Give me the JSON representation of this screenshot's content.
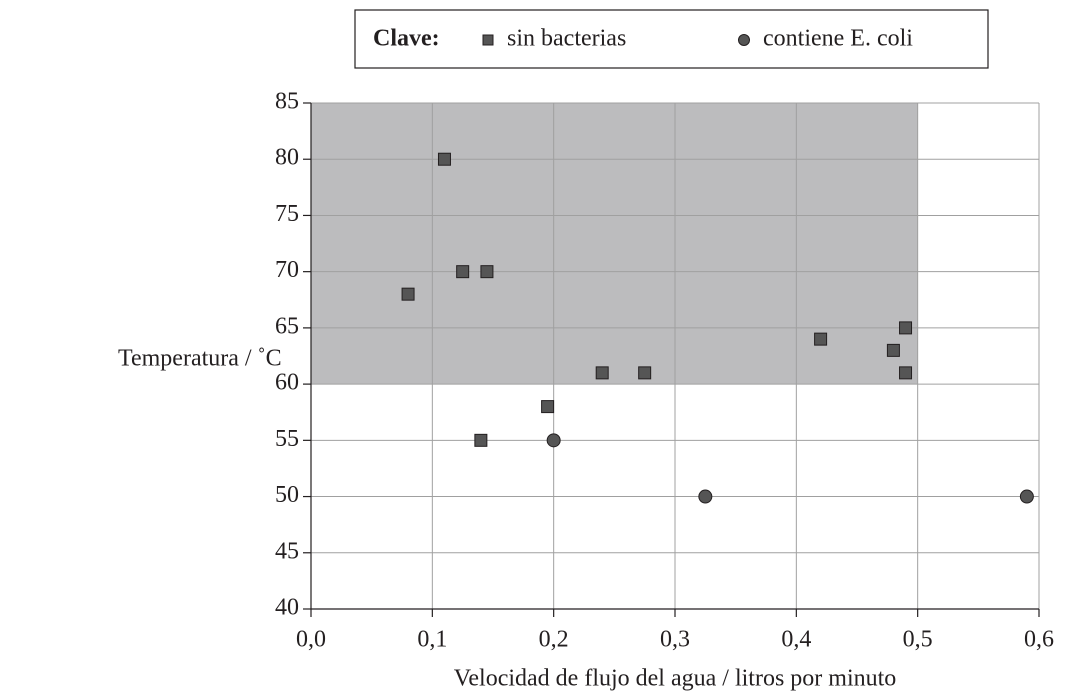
{
  "chart_data": {
    "type": "scatter",
    "legend_title": "Clave:",
    "xlabel": "Velocidad de flujo del agua / litros por minuto",
    "ylabel": "Temperatura / ˚C",
    "xlim": [
      0,
      0.6
    ],
    "ylim": [
      40,
      85
    ],
    "xticks": [
      {
        "value": 0,
        "label": "0,0"
      },
      {
        "value": 0.1,
        "label": "0,1"
      },
      {
        "value": 0.2,
        "label": "0,2"
      },
      {
        "value": 0.3,
        "label": "0,3"
      },
      {
        "value": 0.4,
        "label": "0,4"
      },
      {
        "value": 0.5,
        "label": "0,5"
      },
      {
        "value": 0.6,
        "label": "0,6"
      }
    ],
    "yticks": [
      40,
      45,
      50,
      55,
      60,
      65,
      70,
      75,
      80,
      85
    ],
    "grid": true,
    "highlight": {
      "x": [
        0,
        0.5
      ],
      "y": [
        60,
        85
      ],
      "color": "#bcbcbe"
    },
    "series": [
      {
        "name": "sin bacterias",
        "marker": "square",
        "color": "#555555",
        "x": [
          0.11,
          0.08,
          0.125,
          0.145,
          0.195,
          0.14,
          0.24,
          0.275,
          0.42,
          0.48,
          0.49,
          0.49
        ],
        "y": [
          80,
          68,
          70,
          70,
          58,
          55,
          61,
          61,
          64,
          63,
          65,
          61
        ]
      },
      {
        "name": "contiene E. coli",
        "marker": "circle",
        "color": "#555555",
        "x": [
          0.2,
          0.325,
          0.59
        ],
        "y": [
          55,
          50,
          50
        ]
      }
    ]
  }
}
